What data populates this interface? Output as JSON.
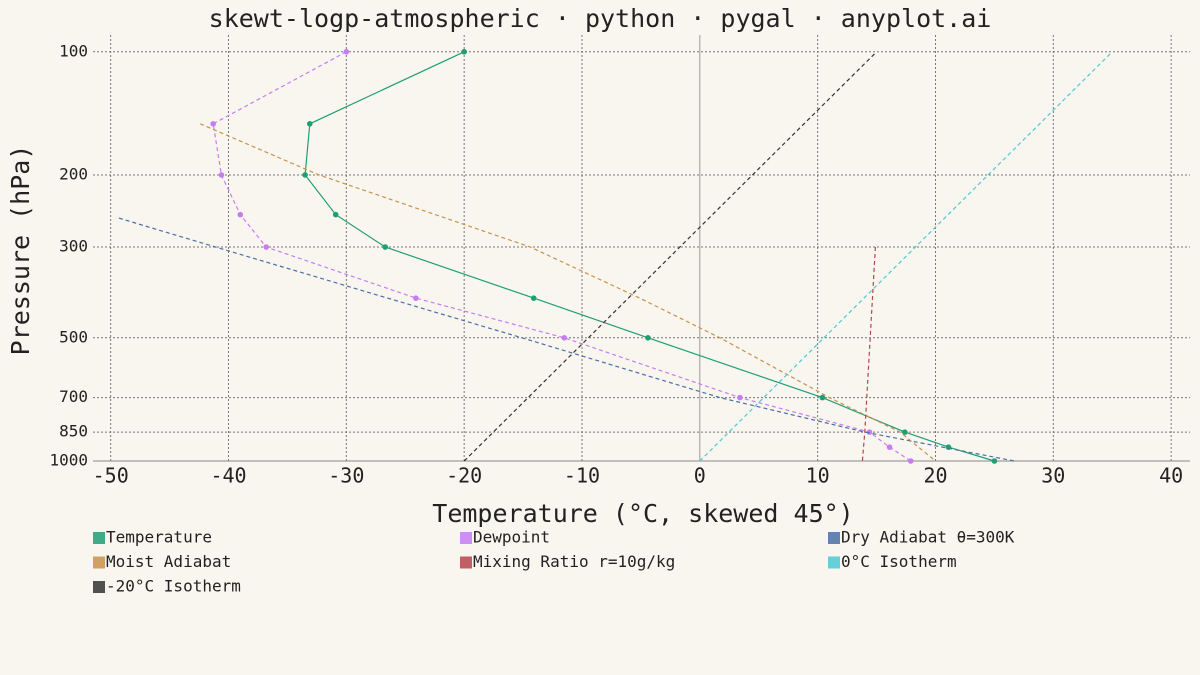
{
  "chart_data": {
    "type": "line",
    "title": "skewt-logp-atmospheric · python · pygal · anyplot.ai",
    "x_label": "Temperature (°C, skewed 45°)",
    "y_label": "Pressure (hPa)",
    "xlim": [
      -51.5,
      41.6
    ],
    "xticks": [
      -50,
      -40,
      -30,
      -20,
      -10,
      0,
      10,
      20,
      30,
      40
    ],
    "ylim": [
      1000,
      91
    ],
    "yticks": [
      100,
      200,
      300,
      500,
      700,
      850,
      1000
    ],
    "y_log": true,
    "grid": true,
    "legend": "bottom",
    "series": [
      {
        "name": "Temperature",
        "color": "#1f9e74",
        "dashed": false,
        "markers": true,
        "x": [
          -20.0,
          -33.1,
          -33.5,
          -30.9,
          -26.7,
          -14.1,
          -4.4,
          10.4,
          17.4,
          21.1,
          25.0
        ],
        "y": [
          100,
          150,
          200,
          250,
          300,
          400,
          500,
          700,
          850,
          925,
          1000
        ]
      },
      {
        "name": "Dewpoint",
        "color": "#c67df2",
        "dashed": true,
        "markers": true,
        "x": [
          -30.0,
          -41.3,
          -40.6,
          -39.0,
          -36.8,
          -24.1,
          -11.5,
          3.4,
          14.4,
          16.1,
          17.9
        ],
        "y": [
          100,
          150,
          200,
          250,
          300,
          400,
          500,
          700,
          850,
          925,
          1000
        ]
      },
      {
        "name": "Dry Adiabat θ=300K",
        "color": "#4a6fa5",
        "dashed": true,
        "markers": false,
        "x": [
          -49.3,
          -41.1,
          -26.5,
          -15.1,
          1.7,
          14.0,
          26.7
        ],
        "y": [
          255,
          300,
          400,
          500,
          700,
          850,
          1000
        ]
      },
      {
        "name": "Moist Adiabat",
        "color": "#c8924a",
        "dashed": true,
        "markers": false,
        "x": [
          -42.4,
          -32.3,
          -14.4,
          -5.1,
          1.7,
          11.0,
          17.0,
          20.0
        ],
        "y": [
          150,
          200,
          300,
          400,
          500,
          700,
          850,
          1000
        ]
      },
      {
        "name": "Mixing Ratio r=10g/kg",
        "color": "#b5454a",
        "dashed": true,
        "markers": false,
        "x": [
          14.9,
          14.0,
          13.8
        ],
        "y": [
          300,
          850,
          1000
        ]
      },
      {
        "name": "0°C Isotherm",
        "color": "#4ec8d6",
        "dashed": true,
        "markers": false,
        "x": [
          0,
          35.0
        ],
        "y": [
          1000,
          100
        ]
      },
      {
        "name": "-20°C Isotherm",
        "color": "#333333",
        "dashed": true,
        "markers": false,
        "x": [
          -20,
          15.0
        ],
        "y": [
          1000,
          100
        ]
      }
    ]
  }
}
